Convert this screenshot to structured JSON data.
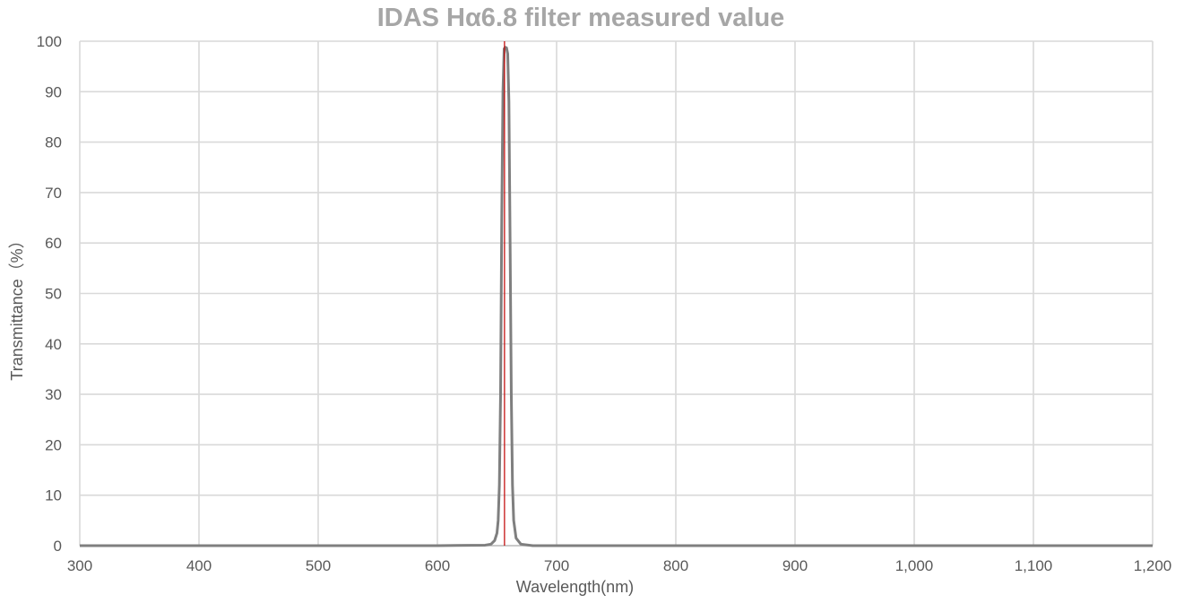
{
  "chart_data": {
    "type": "line",
    "title": "IDAS Hα6.8 filter measured value",
    "xlabel": "Wavelength(nm)",
    "ylabel": "Transmittance（%）",
    "xlim": [
      300,
      1200
    ],
    "ylim": [
      0,
      100
    ],
    "x_ticks": [
      300,
      400,
      500,
      600,
      700,
      800,
      900,
      1000,
      1100,
      1200
    ],
    "x_tick_labels": [
      "300",
      "400",
      "500",
      "600",
      "700",
      "800",
      "900",
      "1,000",
      "1,100",
      "1,200"
    ],
    "y_ticks": [
      0,
      10,
      20,
      30,
      40,
      50,
      60,
      70,
      80,
      90,
      100
    ],
    "y_tick_labels": [
      "0",
      "10",
      "20",
      "30",
      "40",
      "50",
      "60",
      "70",
      "80",
      "90",
      "100"
    ],
    "grid": true,
    "legend": false,
    "reference_line": {
      "x": 656.3,
      "color": "#c00000"
    },
    "series": [
      {
        "color": "#7f7f7f",
        "x": [
          300,
          600,
          640,
          645,
          648,
          650,
          651,
          652,
          653,
          654,
          655,
          656,
          657,
          658,
          659,
          660,
          661,
          662,
          663,
          664,
          666,
          670,
          680,
          700,
          800,
          900,
          1000,
          1100,
          1200
        ],
        "y": [
          0,
          0,
          0.1,
          0.3,
          1,
          2.5,
          5,
          12,
          30,
          65,
          90,
          98.5,
          98.8,
          98.7,
          97.5,
          88,
          60,
          30,
          12,
          5,
          1.5,
          0.3,
          0,
          0,
          0,
          0,
          0,
          0,
          0
        ]
      }
    ]
  }
}
